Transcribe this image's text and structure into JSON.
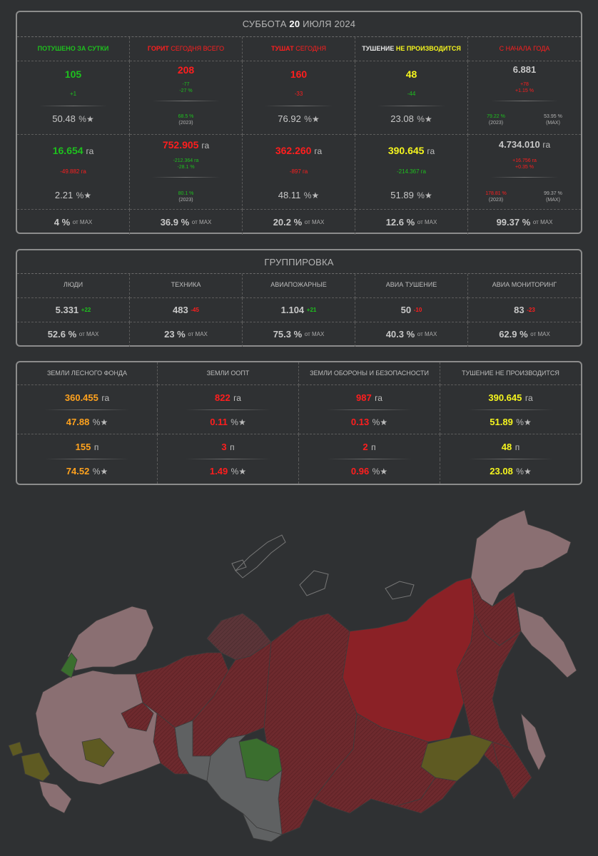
{
  "panel1": {
    "date_prefix": "СУББОТА",
    "date_bold": "20",
    "date_suffix": "ИЮЛЯ 2024",
    "headers": [
      {
        "a": "ПОТУШЕНО ЗА СУТКИ",
        "b": ""
      },
      {
        "a": "ГОРИТ",
        "b": " СЕГОДНЯ ВСЕГО"
      },
      {
        "a": "ТУШАТ",
        "b": " СЕГОДНЯ"
      },
      {
        "a": "ТУШЕНИЕ ",
        "b": "НЕ ПРОИЗВОДИТСЯ"
      },
      {
        "a": "С НАЧАЛА ГОДА",
        "b": ""
      }
    ],
    "counts": {
      "c1": {
        "value": "105",
        "delta": "+1",
        "pct": "50.48",
        "star": "%★"
      },
      "c2": {
        "value": "208",
        "d1": "-77",
        "d2": "-27 %",
        "sub_pct": "68.5 %",
        "sub_year": "(2023)"
      },
      "c3": {
        "value": "160",
        "delta": "-33",
        "pct": "76.92",
        "star": "%★"
      },
      "c4": {
        "value": "48",
        "delta": "-44",
        "pct": "23.08",
        "star": "%★"
      },
      "c5": {
        "value": "6.881",
        "d1": "+78",
        "d2": "+1.15 %",
        "l1": "79.22 %",
        "l2": "(2023)",
        "r1": "53.95 %",
        "r2": "(MAX)"
      }
    },
    "areas": {
      "c1": {
        "value": "16.654",
        "unit": "га",
        "delta": "-49.882 га",
        "pct": "2.21",
        "star": "%★"
      },
      "c2": {
        "value": "752.905",
        "unit": "га",
        "d1": "-212.364 га",
        "d2": "-28.1 %",
        "sub_pct": "80.1 %",
        "sub_year": "(2023)"
      },
      "c3": {
        "value": "362.260",
        "unit": "га",
        "delta": "-897 га",
        "pct": "48.11",
        "star": "%★"
      },
      "c4": {
        "value": "390.645",
        "unit": "га",
        "delta": "-214.367 га",
        "pct": "51.89",
        "star": "%★"
      },
      "c5": {
        "value": "4.734.010",
        "unit": "га",
        "d1": "+16.756 га",
        "d2": "+0.35 %",
        "l1": "178.81 %",
        "l2": "(2023)",
        "r1": "99.37 %",
        "r2": "(MAX)"
      }
    },
    "max_row": [
      {
        "v": "4 %",
        "s": "от MAX"
      },
      {
        "v": "36.9 %",
        "s": "от MAX"
      },
      {
        "v": "20.2 %",
        "s": "от MAX"
      },
      {
        "v": "12.6 %",
        "s": "от MAX"
      },
      {
        "v": "99.37 %",
        "s": "от MAX"
      }
    ]
  },
  "panel2": {
    "title": "ГРУППИРОВКА",
    "headers": [
      "ЛЮДИ",
      "ТЕХНИКА",
      "АВИАПОЖАРНЫЕ",
      "АВИА ТУШЕНИЕ",
      "АВИА МОНИТОРИНГ"
    ],
    "values": [
      {
        "v": "5.331",
        "d": "+22",
        "dc": "g"
      },
      {
        "v": "483",
        "d": "-45",
        "dc": "r"
      },
      {
        "v": "1.104",
        "d": "+21",
        "dc": "g"
      },
      {
        "v": "50",
        "d": "-10",
        "dc": "r"
      },
      {
        "v": "83",
        "d": "-23",
        "dc": "r"
      }
    ],
    "max_row": [
      {
        "v": "52.6 %",
        "s": "от MAX"
      },
      {
        "v": "23 %",
        "s": "от MAX"
      },
      {
        "v": "75.3 %",
        "s": "от MAX"
      },
      {
        "v": "40.3 %",
        "s": "от MAX"
      },
      {
        "v": "62.9 %",
        "s": "от MAX"
      }
    ]
  },
  "panel3": {
    "headers": [
      "ЗЕМЛИ ЛЕСНОГО ФОНДА",
      "ЗЕМЛИ ООПТ",
      "ЗЕМЛИ ОБОРОНЫ И БЕЗОПАСНОСТИ",
      "ТУШЕНИЕ НЕ ПРОИЗВОДИТСЯ"
    ],
    "rows": [
      [
        {
          "v": "360.455",
          "u": "га"
        },
        {
          "v": "822",
          "u": "га"
        },
        {
          "v": "987",
          "u": "га"
        },
        {
          "v": "390.645",
          "u": "га"
        }
      ],
      [
        {
          "v": "47.88",
          "u": "%★"
        },
        {
          "v": "0.11",
          "u": "%★"
        },
        {
          "v": "0.13",
          "u": "%★"
        },
        {
          "v": "51.89",
          "u": "%★"
        }
      ],
      [
        {
          "v": "155",
          "u": "п"
        },
        {
          "v": "3",
          "u": "п"
        },
        {
          "v": "2",
          "u": "п"
        },
        {
          "v": "48",
          "u": "п"
        }
      ],
      [
        {
          "v": "74.52",
          "u": "%★"
        },
        {
          "v": "1.49",
          "u": "%★"
        },
        {
          "v": "0.96",
          "u": "%★"
        },
        {
          "v": "23.08",
          "u": "%★"
        }
      ]
    ],
    "colors": [
      "o",
      "r",
      "r",
      "y"
    ]
  },
  "colors": {
    "background": "#2f3133",
    "green": "#1ec01e",
    "red": "#ff1e1e",
    "yellow": "#f5f51e",
    "orange": "#ffa21e",
    "map_dark_red": "#6e2a2e",
    "map_red": "#8b2126",
    "map_pink": "#8a6f72",
    "map_gray": "#5f6162",
    "map_green": "#3a6e2e",
    "map_olive": "#5e5a22"
  }
}
